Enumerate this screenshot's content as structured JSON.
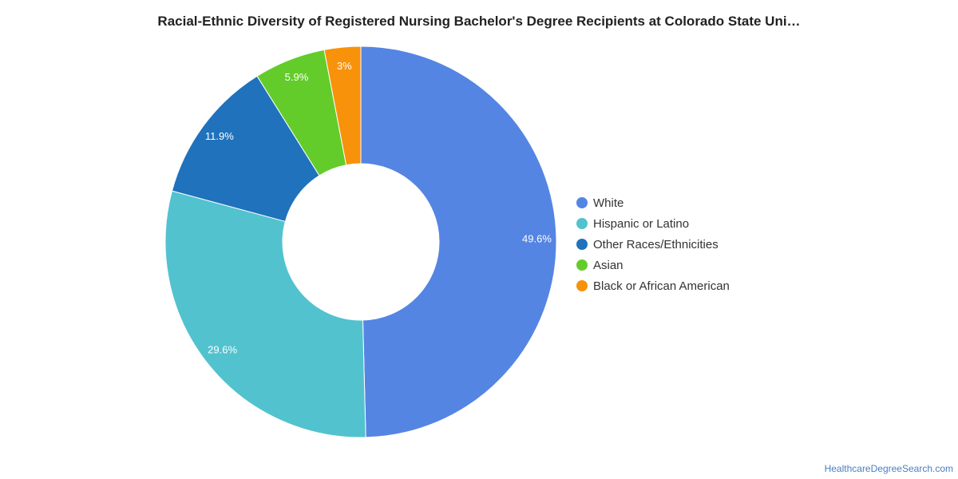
{
  "chart_data": {
    "type": "pie",
    "title": "Racial-Ethnic Diversity of Registered Nursing Bachelor's Degree Recipients at Colorado State Uni…",
    "donut": true,
    "legend_position": "right",
    "slices": [
      {
        "label": "White",
        "value": 49.6,
        "display": "49.6%",
        "color": "#5585e3"
      },
      {
        "label": "Hispanic or Latino",
        "value": 29.6,
        "display": "29.6%",
        "color": "#52c2cf"
      },
      {
        "label": "Other Races/Ethnicities",
        "value": 11.9,
        "display": "11.9%",
        "color": "#1f72bb"
      },
      {
        "label": "Asian",
        "value": 5.9,
        "display": "5.9%",
        "color": "#63cc2a"
      },
      {
        "label": "Black or African American",
        "value": 3,
        "display": "3%",
        "color": "#f7920a"
      }
    ]
  },
  "source": {
    "label": "HealthcareDegreeSearch.com"
  }
}
